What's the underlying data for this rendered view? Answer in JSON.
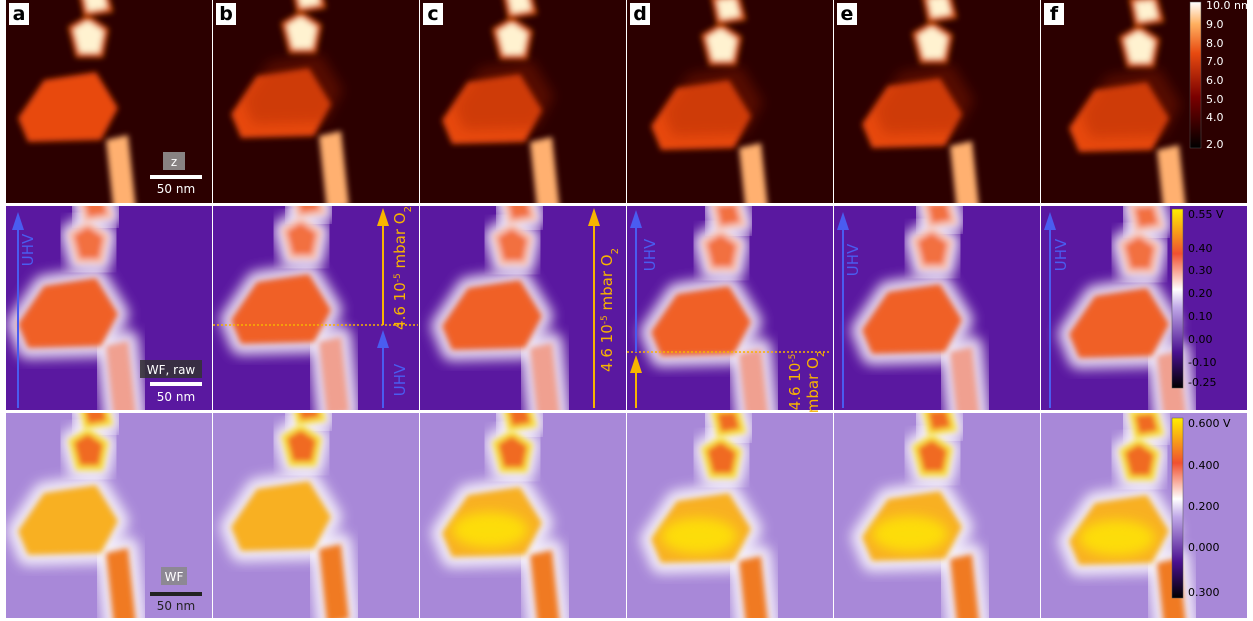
{
  "panels": {
    "labels": [
      "a",
      "b",
      "c",
      "d",
      "e",
      "f"
    ]
  },
  "scale_bars": [
    {
      "label": "z",
      "length": "50 nm"
    },
    {
      "label": "WF, raw",
      "length": "50 nm"
    },
    {
      "label": "WF",
      "length": "50 nm"
    }
  ],
  "annotations": {
    "uhv": "UHV",
    "pressure": {
      "value": "4.6 10",
      "exponent": "-5",
      "unit": " mbar O",
      "subscript": "2"
    }
  },
  "colorbars": [
    {
      "ticks": [
        "10.0 nm",
        "9.0",
        "8.0",
        "7.0",
        "6.0",
        "5.0",
        "4.0",
        "2.0"
      ]
    },
    {
      "ticks": [
        "0.55 V",
        "0.40",
        "0.30",
        "0.20",
        "0.10",
        "0.00",
        "-0.10",
        "-0.25"
      ]
    },
    {
      "ticks": [
        "0.600 V",
        "0.400",
        "0.200",
        "0.000",
        "0.300"
      ]
    }
  ]
}
